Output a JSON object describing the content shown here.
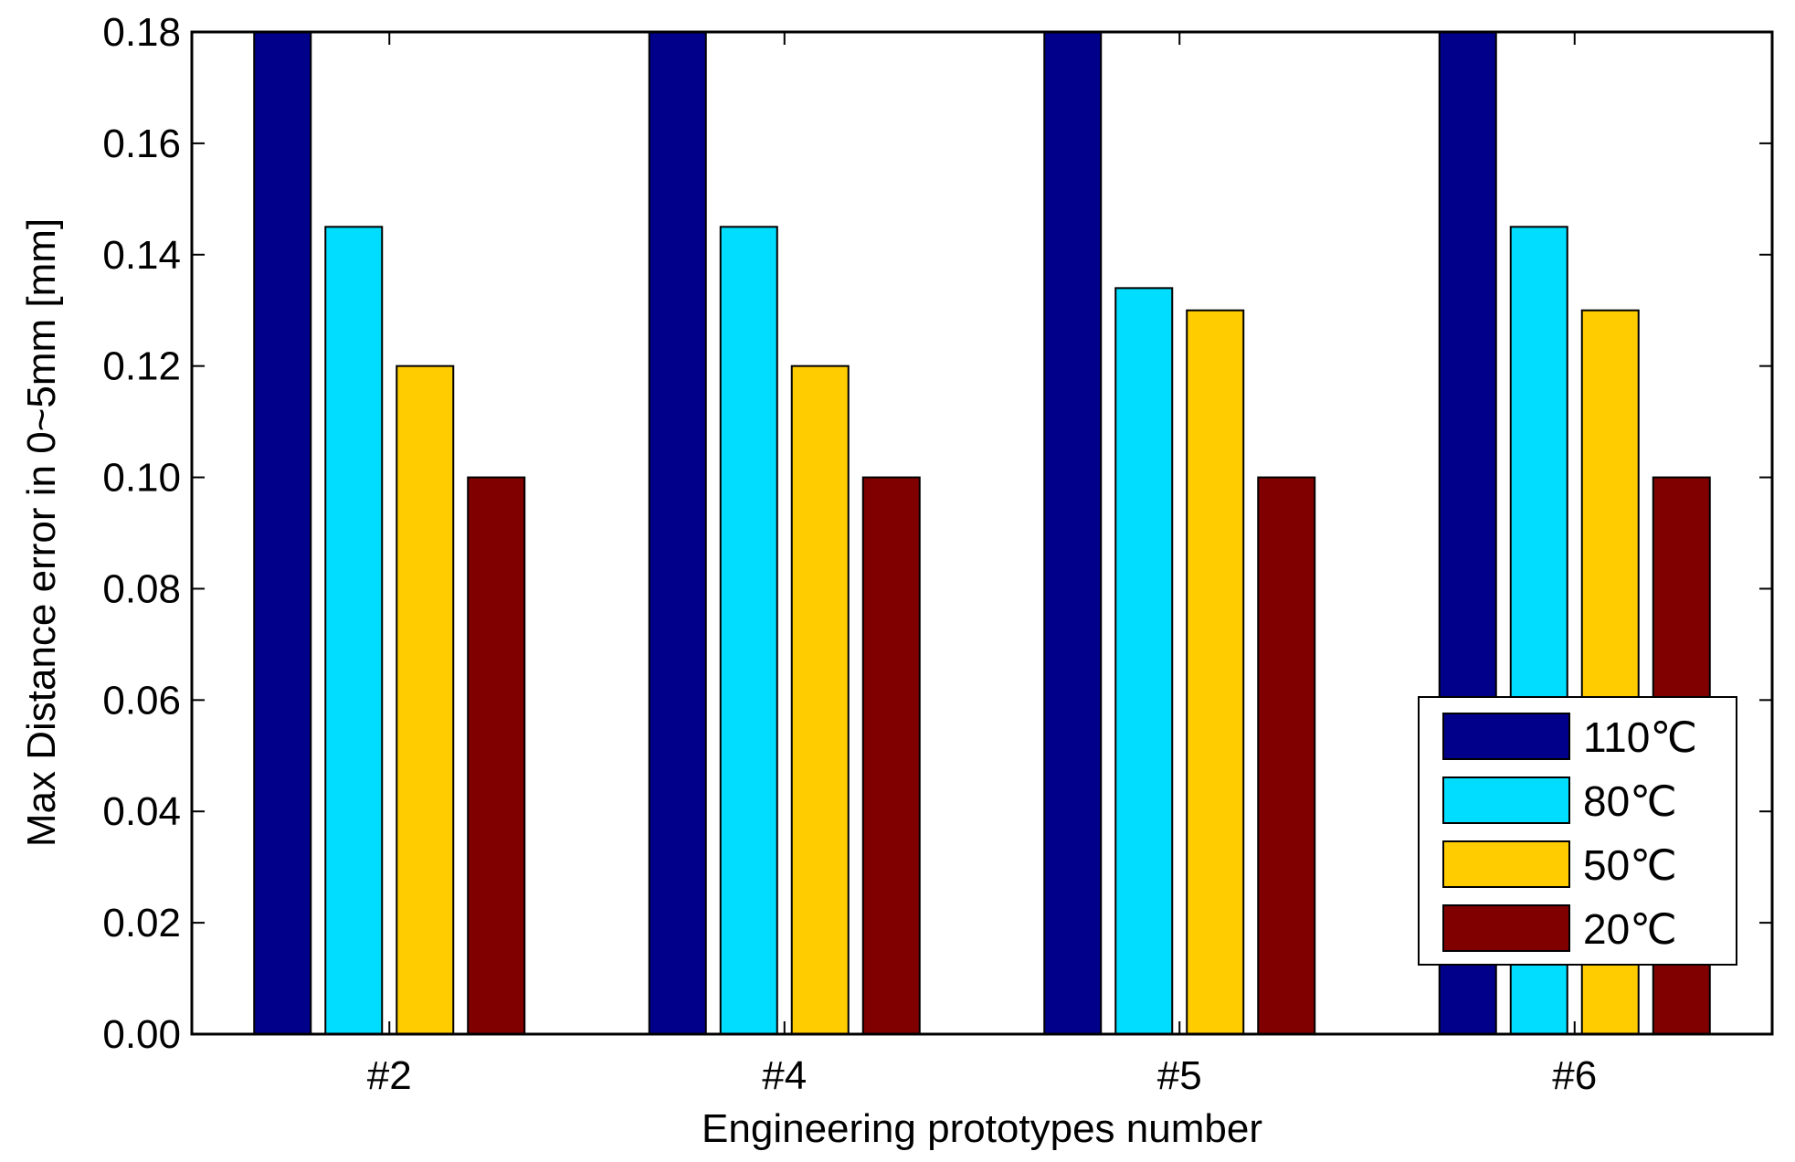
{
  "chart_data": {
    "type": "bar",
    "categories": [
      "#2",
      "#4",
      "#5",
      "#6"
    ],
    "series": [
      {
        "name": "110℃",
        "color": "#00008B",
        "values": [
          0.18,
          0.18,
          0.18,
          0.18
        ]
      },
      {
        "name": "80℃",
        "color": "#00DDFF",
        "values": [
          0.145,
          0.145,
          0.134,
          0.145
        ]
      },
      {
        "name": "50℃",
        "color": "#FFCC00",
        "values": [
          0.12,
          0.12,
          0.13,
          0.13
        ]
      },
      {
        "name": "20℃",
        "color": "#800000",
        "values": [
          0.1,
          0.1,
          0.1,
          0.1
        ]
      }
    ],
    "xlabel": "Engineering prototypes number",
    "ylabel": "Max Distance error in 0~5mm [mm]",
    "ylim": [
      0,
      0.18
    ],
    "yticks": [
      "0.00",
      "0.02",
      "0.04",
      "0.06",
      "0.08",
      "0.10",
      "0.12",
      "0.14",
      "0.16",
      "0.18"
    ],
    "grid": false,
    "legend_position": "bottom-right"
  }
}
